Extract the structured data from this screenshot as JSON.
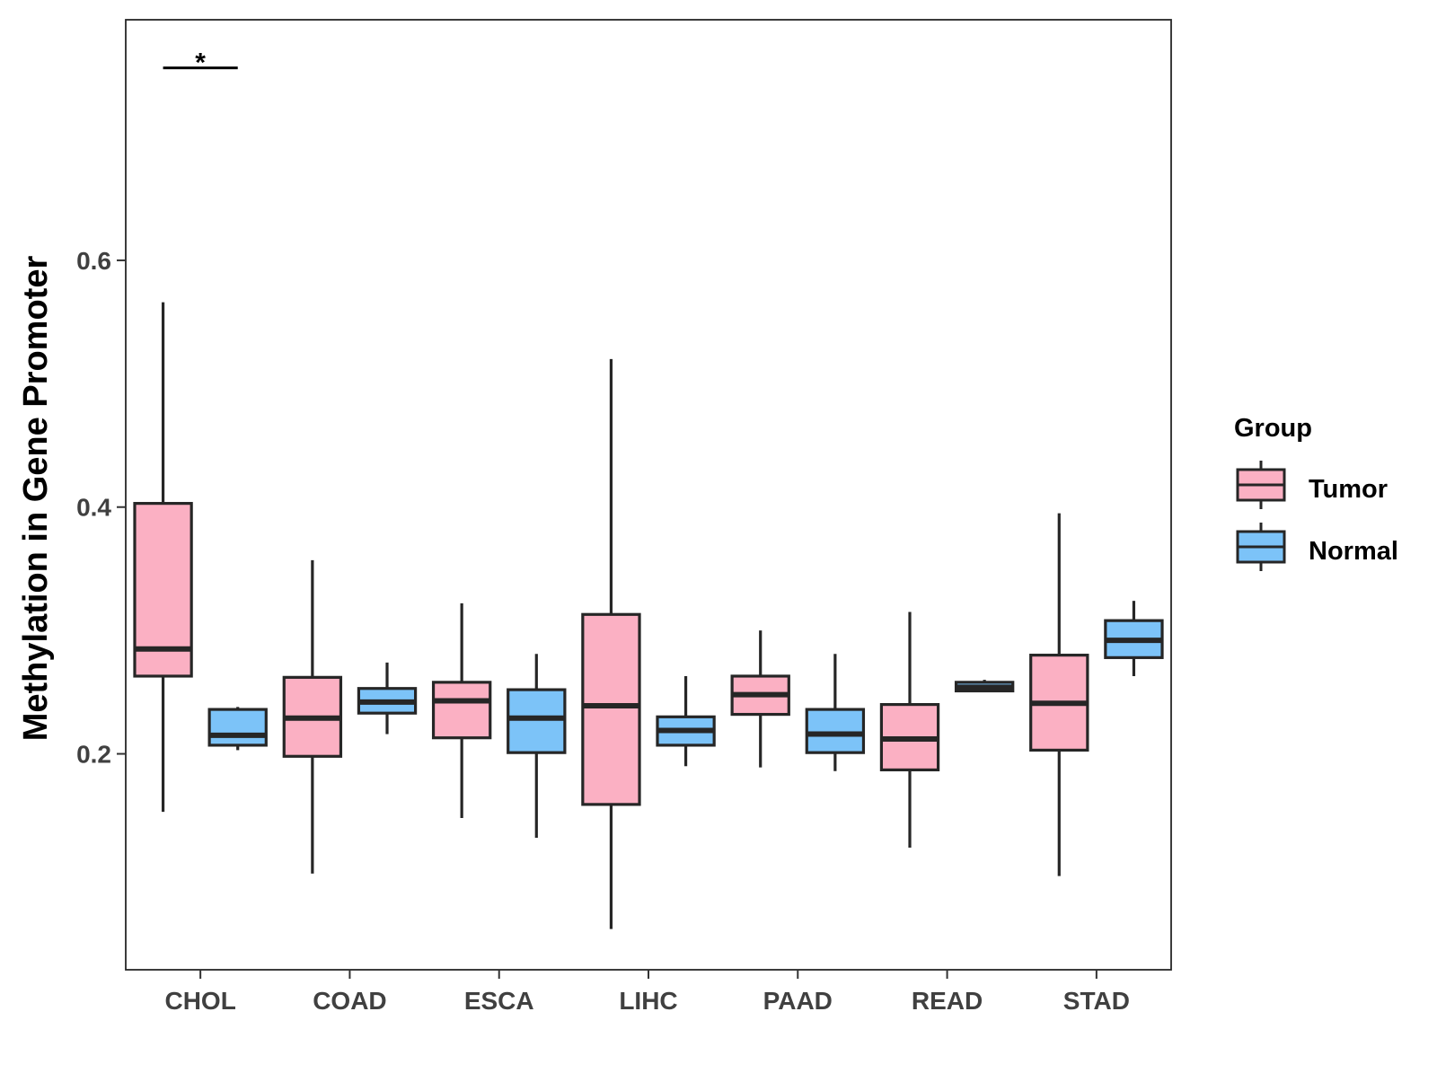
{
  "chart_data": {
    "type": "boxplot",
    "title": "",
    "xlabel": "",
    "ylabel": "Methylation in Gene Promoter",
    "ylim": [
      0.025,
      0.795
    ],
    "yticks": [
      0.2,
      0.4,
      0.6
    ],
    "ytick_labels": [
      "0.2",
      "0.4",
      "0.6"
    ],
    "grid": false,
    "categories": [
      "CHOL",
      "COAD",
      "ESCA",
      "LIHC",
      "PAAD",
      "READ",
      "STAD"
    ],
    "legend": {
      "title": "Group",
      "position": "right",
      "entries": [
        {
          "label": "Tumor",
          "color": "#FBB0C3"
        },
        {
          "label": "Normal",
          "color": "#7CC3F8"
        }
      ]
    },
    "series": [
      {
        "name": "Tumor",
        "color": "#FBB0C3",
        "boxes": [
          {
            "whisker_low": 0.153,
            "q1": 0.263,
            "median": 0.285,
            "q3": 0.403,
            "whisker_high": 0.566
          },
          {
            "whisker_low": 0.103,
            "q1": 0.198,
            "median": 0.229,
            "q3": 0.262,
            "whisker_high": 0.357
          },
          {
            "whisker_low": 0.148,
            "q1": 0.213,
            "median": 0.243,
            "q3": 0.258,
            "whisker_high": 0.322
          },
          {
            "whisker_low": 0.058,
            "q1": 0.159,
            "median": 0.239,
            "q3": 0.313,
            "whisker_high": 0.52
          },
          {
            "whisker_low": 0.189,
            "q1": 0.232,
            "median": 0.248,
            "q3": 0.263,
            "whisker_high": 0.3
          },
          {
            "whisker_low": 0.124,
            "q1": 0.187,
            "median": 0.212,
            "q3": 0.24,
            "whisker_high": 0.315
          },
          {
            "whisker_low": 0.101,
            "q1": 0.203,
            "median": 0.241,
            "q3": 0.28,
            "whisker_high": 0.395
          }
        ]
      },
      {
        "name": "Normal",
        "color": "#7CC3F8",
        "boxes": [
          {
            "whisker_low": 0.203,
            "q1": 0.207,
            "median": 0.215,
            "q3": 0.236,
            "whisker_high": 0.238
          },
          {
            "whisker_low": 0.216,
            "q1": 0.233,
            "median": 0.242,
            "q3": 0.253,
            "whisker_high": 0.274
          },
          {
            "whisker_low": 0.132,
            "q1": 0.201,
            "median": 0.229,
            "q3": 0.252,
            "whisker_high": 0.281
          },
          {
            "whisker_low": 0.19,
            "q1": 0.207,
            "median": 0.219,
            "q3": 0.23,
            "whisker_high": 0.263
          },
          {
            "whisker_low": 0.186,
            "q1": 0.201,
            "median": 0.216,
            "q3": 0.236,
            "whisker_high": 0.281
          },
          {
            "whisker_low": 0.251,
            "q1": 0.251,
            "median": 0.254,
            "q3": 0.258,
            "whisker_high": 0.26
          },
          {
            "whisker_low": 0.263,
            "q1": 0.278,
            "median": 0.292,
            "q3": 0.308,
            "whisker_high": 0.324
          }
        ]
      }
    ],
    "annotations": [
      {
        "text": "*",
        "category": "CHOL",
        "y": 0.756
      }
    ]
  }
}
